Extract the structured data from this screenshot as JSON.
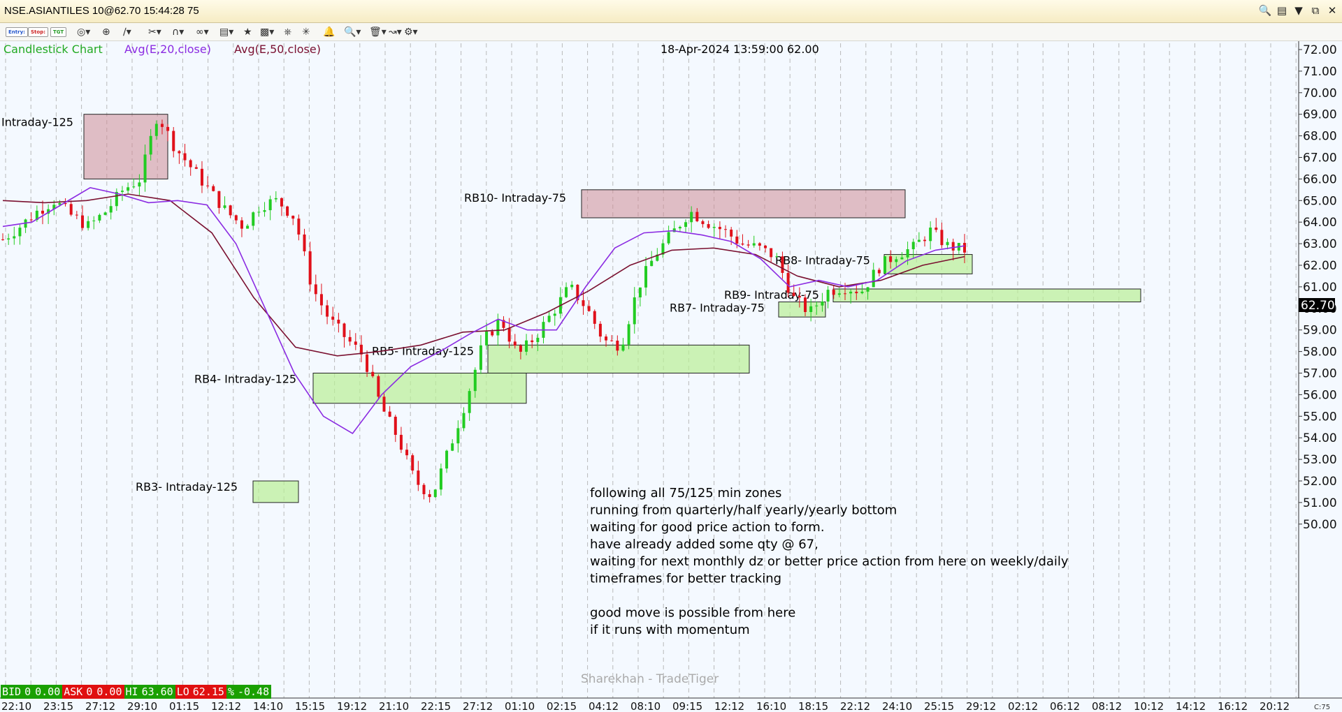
{
  "window": {
    "title": "NSE.ASIANTILES 10@62.70 15:44:28 75",
    "controls": [
      "search-icon",
      "panel-icon",
      "minimize",
      "restore",
      "close"
    ]
  },
  "toolbar": {
    "entry_label": "Entry:",
    "stop_label": "Stop:",
    "tgt_label": "TGT",
    "icons": [
      "target-icon",
      "crosshair-icon",
      "draw-line-icon",
      "scissors-icon",
      "magnet-icon",
      "link-icon",
      "template-icon",
      "star-icon",
      "indicator-icon",
      "fork-icon",
      "alert-icon",
      "bell-icon",
      "zoom-icon",
      "delete-icon",
      "line-chart-icon",
      "settings-icon"
    ]
  },
  "legend": {
    "chart_type": "Candlestick Chart",
    "ema20": "Avg(E,20,close)",
    "ema50": "Avg(E,50,close)",
    "cursor_readout": "18-Apr-2024 13:59:00 62.00",
    "colors": {
      "chart_type": "#22aa22",
      "ema20": "#8b2be2",
      "ema50": "#7a1030"
    }
  },
  "watermark": "Sharekhan - TradeTiger",
  "last_price_label": "62.70",
  "quote_strip": {
    "bid_label": "BID",
    "bid_qty": "0",
    "bid_price": "0.00",
    "ask_label": "ASK",
    "ask_qty": "0",
    "ask_price": "0.00",
    "hi_label": "HI",
    "hi_value": "63.60",
    "lo_label": "LO",
    "lo_value": "62.15",
    "pct_label": "%",
    "pct_value": "-0.48"
  },
  "corner_label": "C:75",
  "notes": [
    "following all 75/125 min zones",
    "running from quarterly/half yearly/yearly bottom",
    "waiting for good price action to form.",
    "have already added some qty @ 67,",
    "waiting for next monthly dz or better price action from here on weekly/daily",
    "timeframes for better tracking",
    "",
    "good move is possible from here",
    "if it runs with momentum"
  ],
  "chart_data": {
    "type": "candlestick",
    "symbol": "NSE.ASIANTILES",
    "ylim": [
      49.2,
      72.6
    ],
    "yticks": [
      "72.00",
      "71.00",
      "70.00",
      "69.00",
      "68.00",
      "67.00",
      "66.00",
      "65.00",
      "64.00",
      "63.00",
      "62.00",
      "61.00",
      "60.00",
      "59.00",
      "58.00",
      "57.00",
      "56.00",
      "55.00",
      "54.00",
      "53.00",
      "52.00",
      "51.00",
      "50.00"
    ],
    "xticks": [
      "22:10",
      "23:15",
      "27:12",
      "29:10",
      "01:15",
      "12:12",
      "14:10",
      "15:15",
      "19:12",
      "21:10",
      "22:15",
      "27:12",
      "01:10",
      "02:15",
      "04:12",
      "08:10",
      "09:15",
      "12:12",
      "16:10",
      "18:15",
      "22:12",
      "24:10",
      "25:15",
      "29:12",
      "02:12",
      "06:12",
      "08:12",
      "10:12",
      "14:12",
      "16:12",
      "20:12"
    ],
    "close_path": [
      63.2,
      63.8,
      64.5,
      65.0,
      64.3,
      63.8,
      64.5,
      65.5,
      66.0,
      69.0,
      67.5,
      66.5,
      65.5,
      64.5,
      63.8,
      64.8,
      65.0,
      64.2,
      61.0,
      59.5,
      58.6,
      57.8,
      55.5,
      54.0,
      52.0,
      51.3,
      53.5,
      55.8,
      58.5,
      59.5,
      57.8,
      58.7,
      59.8,
      61.0,
      60.0,
      58.5,
      58.3,
      61.0,
      62.5,
      63.5,
      64.5,
      64.0,
      63.6,
      63.0,
      62.8,
      62.4,
      60.5,
      59.8,
      60.8,
      61.0,
      60.8,
      61.9,
      62.5,
      62.8,
      63.6,
      62.9,
      62.7
    ],
    "ema20": [
      63.8,
      64.0,
      64.8,
      65.6,
      65.3,
      64.9,
      65.0,
      64.8,
      63.0,
      60.0,
      57.0,
      55.0,
      54.2,
      56.0,
      57.3,
      58.0,
      58.8,
      59.5,
      59.0,
      59.0,
      61.0,
      62.8,
      63.5,
      63.6,
      63.4,
      63.1,
      62.3,
      61.0,
      61.3,
      61.0,
      61.3,
      62.2,
      62.7,
      62.9
    ],
    "ema50": [
      65.0,
      64.9,
      65.0,
      65.3,
      65.0,
      63.5,
      60.5,
      58.2,
      57.8,
      58.0,
      58.3,
      58.9,
      59.0,
      59.8,
      60.8,
      62.0,
      62.7,
      62.8,
      62.5,
      61.5,
      61.0,
      61.3,
      62.0,
      62.4
    ],
    "zones": [
      {
        "label": "Intraday-125",
        "type": "supply",
        "low": 66.0,
        "high": 69.0
      },
      {
        "label": "RB10- Intraday-75",
        "type": "supply",
        "low": 64.2,
        "high": 65.5
      },
      {
        "label": "RB3- Intraday-125",
        "type": "demand",
        "low": 51.0,
        "high": 52.0
      },
      {
        "label": "RB4- Intraday-125",
        "type": "demand",
        "low": 55.6,
        "high": 57.0
      },
      {
        "label": "RB5- Intraday-125",
        "type": "demand",
        "low": 57.0,
        "high": 58.3
      },
      {
        "label": "RB7- Intraday-75",
        "type": "demand",
        "low": 59.6,
        "high": 60.3
      },
      {
        "label": "RB8- Intraday-75",
        "type": "demand",
        "low": 61.6,
        "high": 62.5
      },
      {
        "label": "RB9- Intraday-75",
        "type": "demand",
        "low": 60.3,
        "high": 60.9
      }
    ]
  }
}
